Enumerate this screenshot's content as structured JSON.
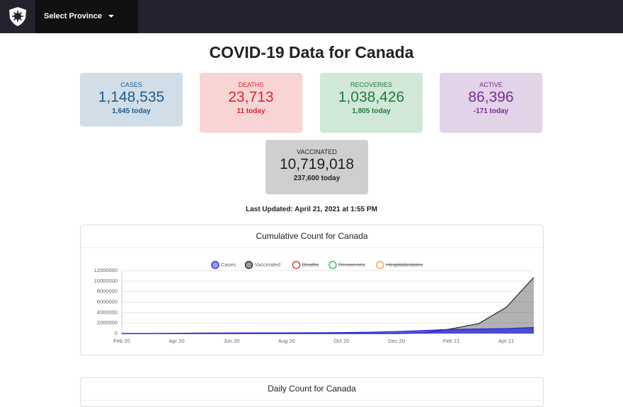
{
  "nav": {
    "button": "Select Province"
  },
  "header": {
    "title": "COVID-19 Data for Canada"
  },
  "cards": [
    {
      "label": "CASES",
      "total": "1,148,535",
      "today": "1,645 today"
    },
    {
      "label": "DEATHS",
      "total": "23,713",
      "today": "11 today"
    },
    {
      "label": "RECOVERIES",
      "total": "1,038,426",
      "today": "1,805 today"
    },
    {
      "label": "ACTIVE",
      "total": "86,396",
      "today": "-171 today"
    },
    {
      "label": "VACCINATED",
      "total": "10,719,018",
      "today": "237,600 today"
    }
  ],
  "updated": "Last Updated: April 21, 2021 at 1:55 PM",
  "chart_data": {
    "type": "area",
    "title": "Cumulative Count for Canada",
    "categories": [
      "Feb 20",
      null,
      "Apr 20",
      null,
      "Jun 20",
      null,
      "Aug 20",
      null,
      "Oct 20",
      null,
      "Dec 20",
      null,
      "Feb 21",
      null,
      "Apr 21",
      null
    ],
    "series": [
      {
        "name": "Cases",
        "color": "#2222dd",
        "hidden": false,
        "values": [
          0,
          1000,
          50000,
          90000,
          103000,
          114000,
          125000,
          144000,
          173000,
          240000,
          380000,
          570000,
          780000,
          860000,
          950000,
          1148535
        ]
      },
      {
        "name": "Vaccinated",
        "color": "#222222",
        "hidden": false,
        "values": [
          0,
          0,
          0,
          0,
          0,
          0,
          0,
          0,
          0,
          0,
          0,
          120000,
          900000,
          1900000,
          5000000,
          10719018
        ]
      },
      {
        "name": "Deaths",
        "color": "#e02020",
        "hidden": true
      },
      {
        "name": "Recoveries",
        "color": "#20b040",
        "hidden": true
      },
      {
        "name": "Hospitalizations",
        "color": "#f0a020",
        "hidden": true
      }
    ],
    "ylim": [
      0,
      12000000
    ],
    "yticks": [
      0,
      2000000,
      4000000,
      6000000,
      8000000,
      10000000,
      12000000
    ],
    "grid": true
  },
  "next_chart": {
    "title": "Daily Count for Canada"
  }
}
